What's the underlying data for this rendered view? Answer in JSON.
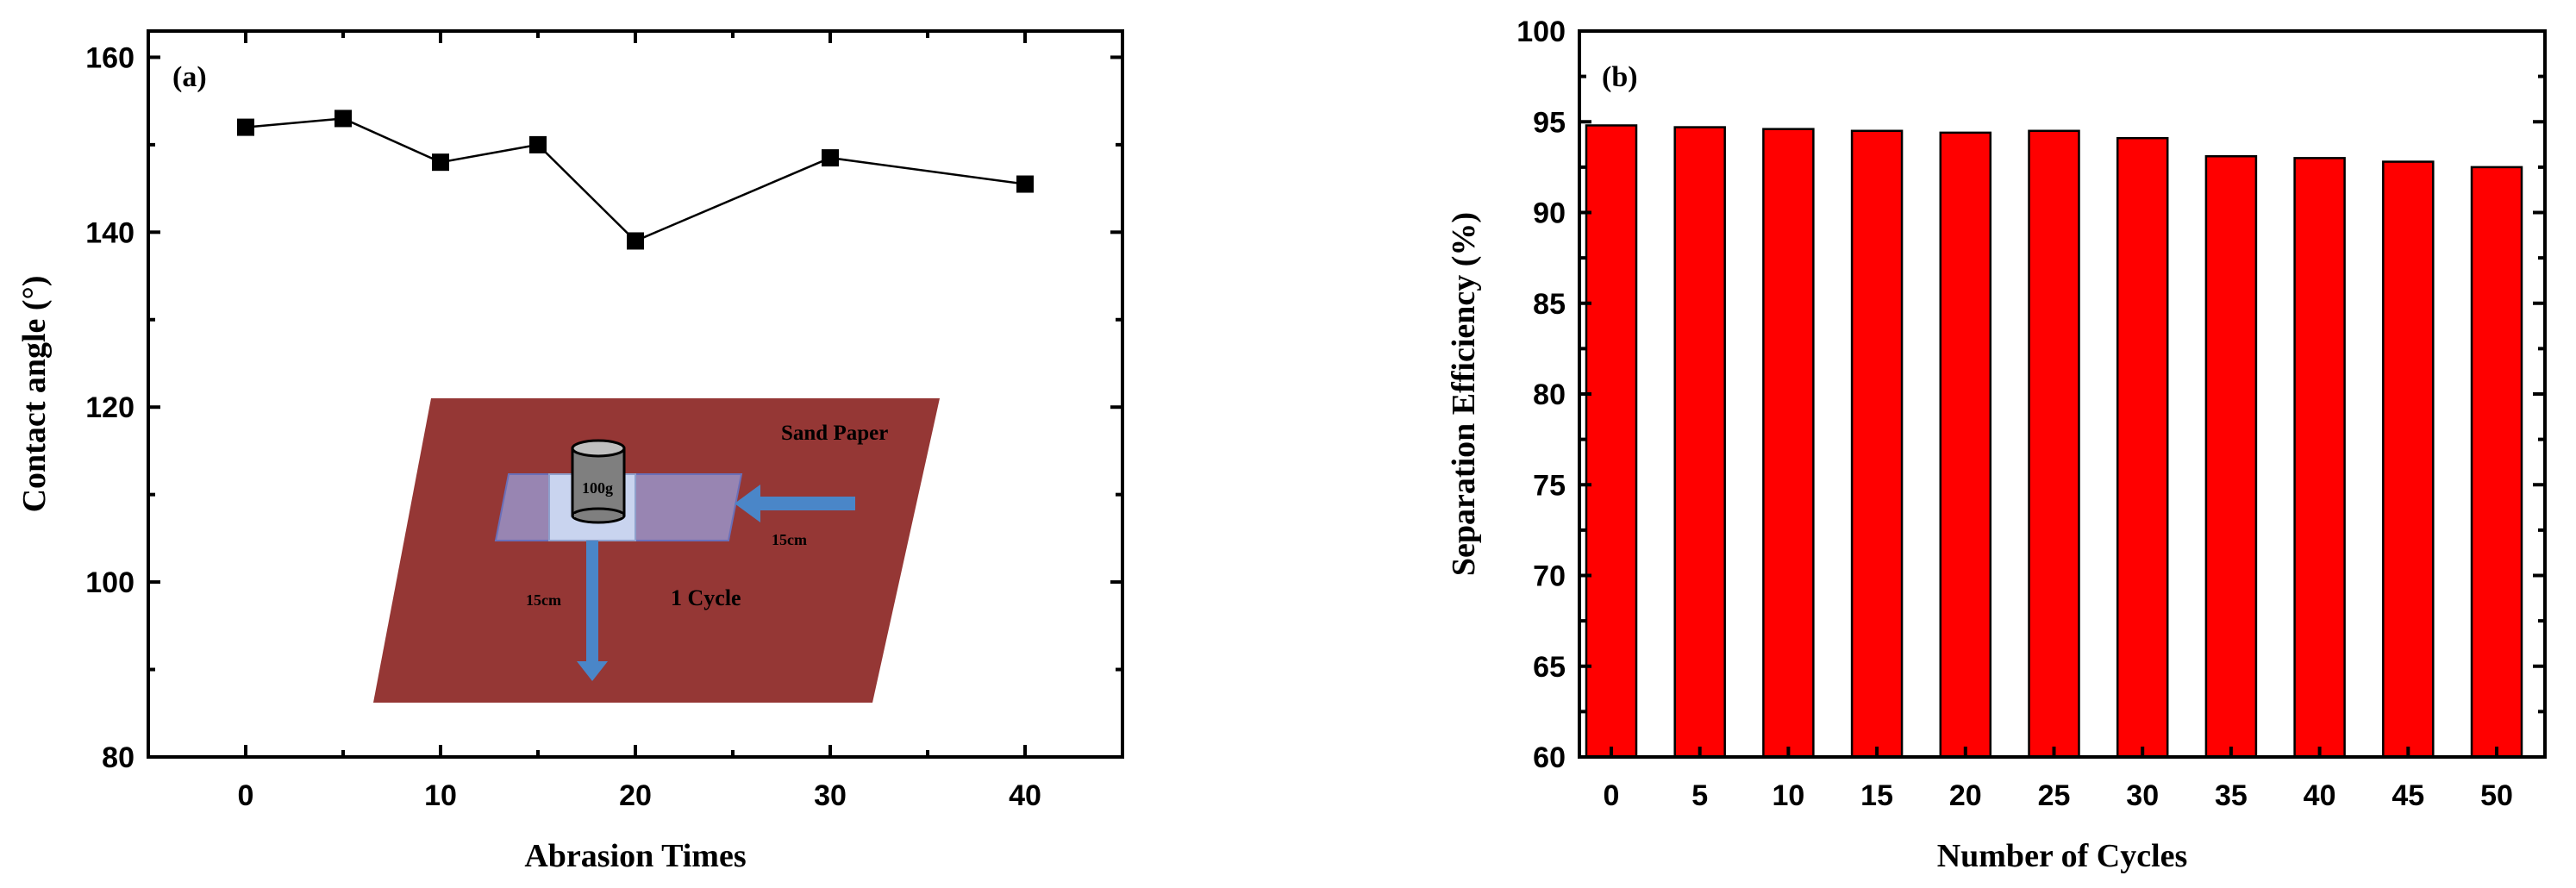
{
  "chart_data": [
    {
      "panel_label": "(a)",
      "type": "line",
      "xlabel": "Abrasion Times",
      "ylabel": "Contact angle (°)",
      "xlim": [
        -5,
        45
      ],
      "ylim": [
        80,
        163
      ],
      "xticks": [
        0,
        10,
        20,
        30,
        40
      ],
      "yticks": [
        80,
        100,
        120,
        140,
        160
      ],
      "marker": "square",
      "line_color": "#000000",
      "x": [
        0,
        5,
        10,
        15,
        20,
        30,
        40
      ],
      "y": [
        152,
        153,
        148,
        150,
        139,
        148.5,
        145.5
      ],
      "inset": {
        "paper_label": "Sand Paper",
        "weight_label": "100g",
        "arrow_h_label": "15cm",
        "arrow_v_label": "15cm",
        "cycle_label": "1 Cycle",
        "paper_color": "#953735",
        "arrow_color": "#4a86c8"
      }
    },
    {
      "panel_label": "(b)",
      "type": "bar",
      "xlabel": "Number of Cycles",
      "ylabel": "Separation Efficiency (%)",
      "ylim": [
        60,
        100
      ],
      "yticks": [
        60,
        65,
        70,
        75,
        80,
        85,
        90,
        95,
        100
      ],
      "bar_color": "#ff0000",
      "categories": [
        "0",
        "5",
        "10",
        "15",
        "20",
        "25",
        "30",
        "35",
        "40",
        "45",
        "50"
      ],
      "values": [
        94.8,
        94.7,
        94.6,
        94.5,
        94.4,
        94.5,
        94.1,
        93.1,
        93.0,
        92.8,
        92.5
      ]
    }
  ]
}
